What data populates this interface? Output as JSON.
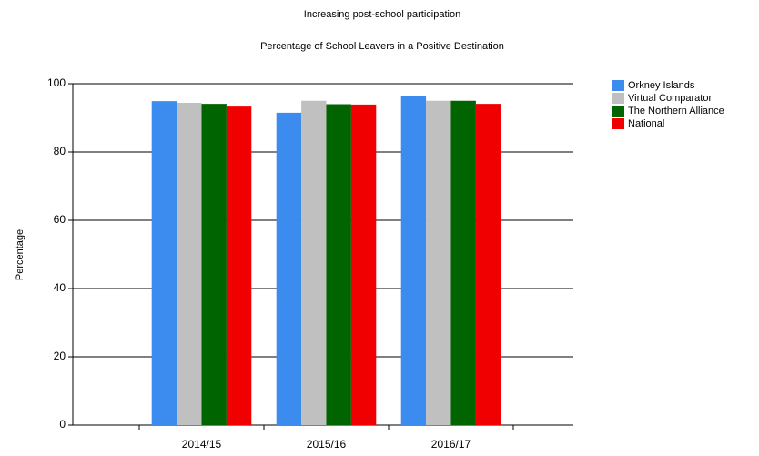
{
  "chart_data": {
    "type": "bar",
    "title": "Increasing post-school participation",
    "subtitle": "Percentage of School Leavers in a Positive Destination",
    "y_label": "Percentage",
    "categories": [
      "2014/15",
      "2015/16",
      "2016/17"
    ],
    "series": [
      {
        "name": "Orkney Islands",
        "color": "#3c8cf0",
        "values": [
          94.9,
          91.5,
          96.5
        ]
      },
      {
        "name": "Virtual Comparator",
        "color": "#c0c0c0",
        "values": [
          94.4,
          95.0,
          95.0
        ]
      },
      {
        "name": "The Northern Alliance",
        "color": "#006400",
        "values": [
          94.1,
          94.0,
          95.0
        ]
      },
      {
        "name": "National",
        "color": "#f00000",
        "values": [
          93.3,
          93.9,
          94.1
        ]
      }
    ],
    "ylim": [
      0,
      100
    ],
    "yticks": [
      0,
      20,
      40,
      60,
      80,
      100
    ],
    "grid": true,
    "legend": "top-right"
  }
}
